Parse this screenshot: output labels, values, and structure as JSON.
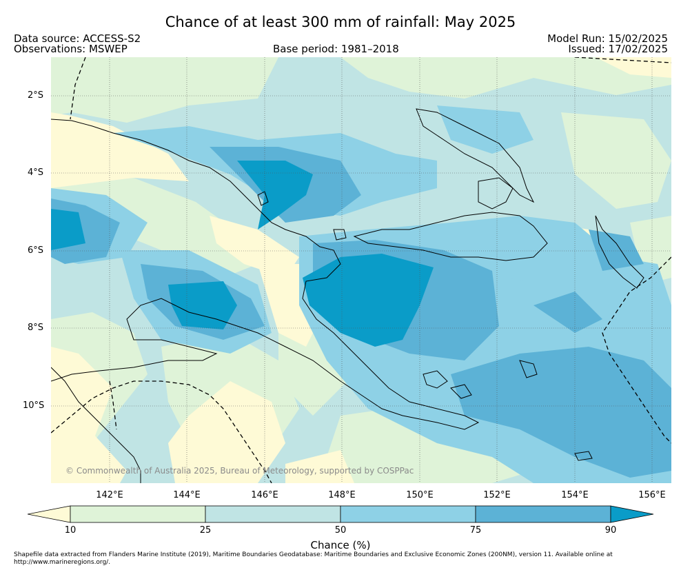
{
  "title": "Chance of at least 300 mm of rainfall: May 2025",
  "header": {
    "data_source": "Data source: ACCESS-S2",
    "observations": "Observations: MSWEP",
    "base_period": "Base period: 1981–2018",
    "model_run": "Model Run: 15/02/2025",
    "issued": "Issued: 17/02/2025"
  },
  "map": {
    "latitude_labels": [
      "2°S",
      "4°S",
      "6°S",
      "8°S",
      "10°S"
    ],
    "longitude_labels": [
      "142°E",
      "144°E",
      "146°E",
      "148°E",
      "150°E",
      "152°E",
      "154°E",
      "156°E"
    ],
    "copyright": "© Commonwealth of Australia 2025, Bureau of Meteorology, supported by COSPPac",
    "grid": true
  },
  "colorbar": {
    "label": "Chance (%)",
    "ticks": [
      "10",
      "25",
      "50",
      "75",
      "90"
    ],
    "colors": {
      "below_10": "#fefad6",
      "c10_25": "#dff3d8",
      "c25_50": "#c0e4e4",
      "c50_75": "#8ed1e6",
      "c75_90": "#5cb2d6",
      "above_90": "#0a9cc8"
    }
  },
  "footnote": "Shapefile data extracted from Flanders Marine Institute (2019), Maritime Boundaries Geodatabase: Maritime Boundaries and Exclusive Economic Zones (200NM), version 11. Available online at http://www.marineregions.org/."
}
